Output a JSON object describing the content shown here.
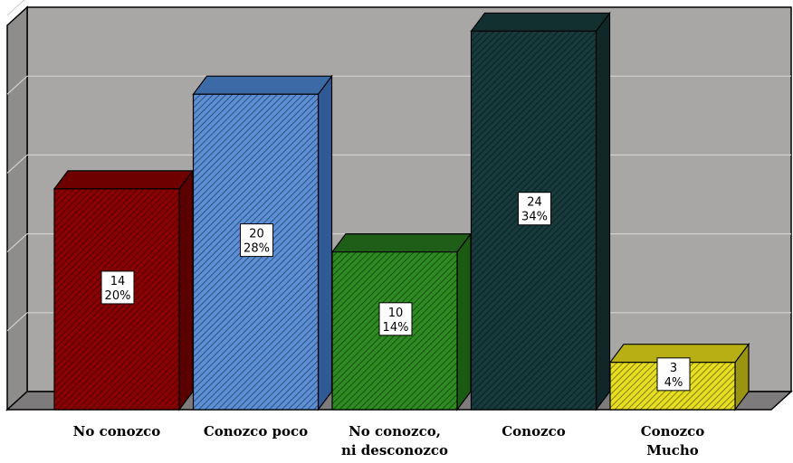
{
  "chart_data": {
    "type": "bar",
    "style": "3d",
    "grid": true,
    "legend": "none",
    "ylim": [
      0,
      25
    ],
    "categories": [
      [
        "No conozco"
      ],
      [
        "Conozco poco"
      ],
      [
        "No conozco,",
        "ni desconozco"
      ],
      [
        "Conozco"
      ],
      [
        "Conozco",
        "Mucho"
      ]
    ],
    "values": [
      14,
      20,
      10,
      24,
      3
    ],
    "percent_labels": [
      "20%",
      "28%",
      "14%",
      "34%",
      "4%"
    ],
    "colors": [
      "#8b0000",
      "#5b8fd6",
      "#2e8b22",
      "#173a3c",
      "#e6de1e"
    ],
    "side_colors": [
      "#5a0000",
      "#2f5a96",
      "#1a5a12",
      "#0f2728",
      "#9a9410"
    ],
    "top_colors": [
      "#6e0000",
      "#3b6aa6",
      "#1f5e18",
      "#12302f",
      "#b7af14"
    ]
  }
}
